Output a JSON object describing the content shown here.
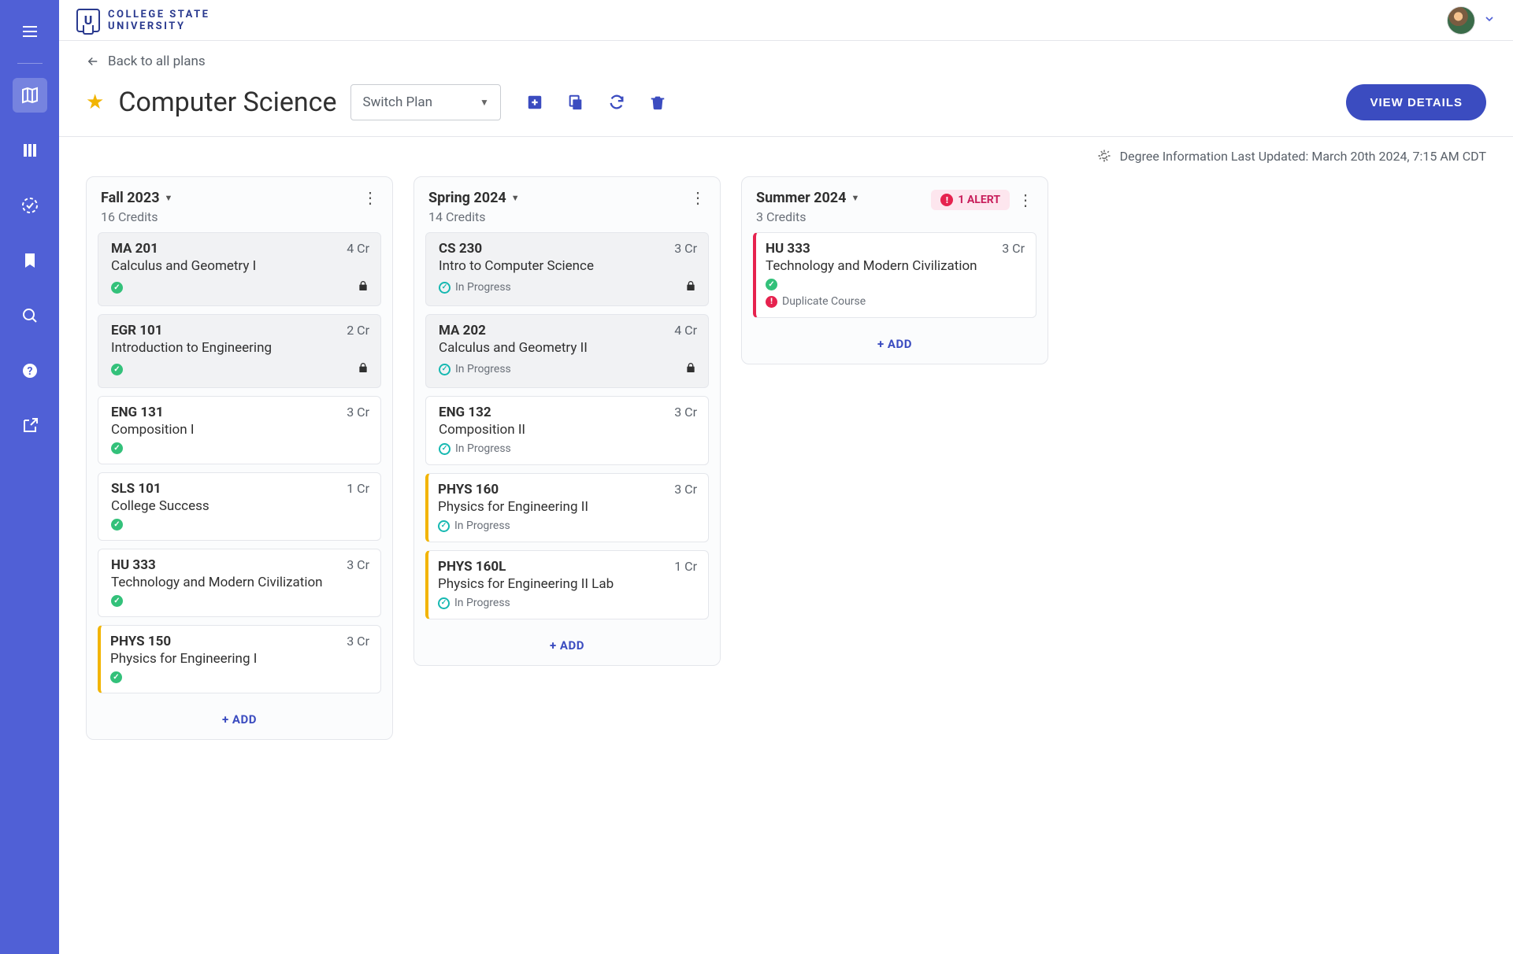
{
  "brand": {
    "line1": "COLLEGE STATE",
    "line2": "UNIVERSITY",
    "mark": "U"
  },
  "back_link": "Back to all plans",
  "page_title": "Computer Science",
  "switch_plan_label": "Switch Plan",
  "view_details_label": "VIEW DETAILS",
  "degree_info": {
    "prefix": "Degree Information Last Updated: ",
    "timestamp": "March 20th 2024, 7:15 AM CDT"
  },
  "add_label": "+ ADD",
  "colors": {
    "sidebar": "#5060d6",
    "primary": "#3b4cc0",
    "star": "#f2b400",
    "alert": "#e6224e",
    "alert_bg": "#fde6ee",
    "teal": "#15b8b1",
    "green": "#33c17a"
  },
  "terms": [
    {
      "title": "Fall 2023",
      "credits_label": "16 Credits",
      "alert": null,
      "courses": [
        {
          "code": "MA 201",
          "name": "Calculus and Geometry I",
          "credits": "4 Cr",
          "status": "complete",
          "status_text": "",
          "locked": true,
          "accent": null,
          "warning": null
        },
        {
          "code": "EGR 101",
          "name": "Introduction to Engineering",
          "credits": "2 Cr",
          "status": "complete",
          "status_text": "",
          "locked": true,
          "accent": null,
          "warning": null
        },
        {
          "code": "ENG 131",
          "name": "Composition I",
          "credits": "3 Cr",
          "status": "complete",
          "status_text": "",
          "locked": false,
          "accent": null,
          "warning": null
        },
        {
          "code": "SLS 101",
          "name": "College Success",
          "credits": "1 Cr",
          "status": "complete",
          "status_text": "",
          "locked": false,
          "accent": null,
          "warning": null
        },
        {
          "code": "HU 333",
          "name": "Technology and Modern Civilization",
          "credits": "3 Cr",
          "status": "complete",
          "status_text": "",
          "locked": false,
          "accent": null,
          "warning": null
        },
        {
          "code": "PHYS 150",
          "name": "Physics for Engineering I",
          "credits": "3 Cr",
          "status": "complete",
          "status_text": "",
          "locked": false,
          "accent": "yellow",
          "warning": null
        }
      ]
    },
    {
      "title": "Spring 2024",
      "credits_label": "14 Credits",
      "alert": null,
      "courses": [
        {
          "code": "CS 230",
          "name": "Intro to Computer Science",
          "credits": "3 Cr",
          "status": "in-progress",
          "status_text": "In Progress",
          "locked": true,
          "accent": null,
          "warning": null
        },
        {
          "code": "MA 202",
          "name": "Calculus and Geometry II",
          "credits": "4 Cr",
          "status": "in-progress",
          "status_text": "In Progress",
          "locked": true,
          "accent": null,
          "warning": null
        },
        {
          "code": "ENG 132",
          "name": "Composition II",
          "credits": "3 Cr",
          "status": "in-progress",
          "status_text": "In Progress",
          "locked": false,
          "accent": null,
          "warning": null
        },
        {
          "code": "PHYS 160",
          "name": "Physics for Engineering II",
          "credits": "3 Cr",
          "status": "in-progress",
          "status_text": "In Progress",
          "locked": false,
          "accent": "yellow",
          "warning": null
        },
        {
          "code": "PHYS 160L",
          "name": "Physics for Engineering II Lab",
          "credits": "1 Cr",
          "status": "in-progress",
          "status_text": "In Progress",
          "locked": false,
          "accent": "yellow",
          "warning": null
        }
      ]
    },
    {
      "title": "Summer 2024",
      "credits_label": "3 Credits",
      "alert": "1 ALERT",
      "courses": [
        {
          "code": "HU 333",
          "name": "Technology and Modern Civilization",
          "credits": "3 Cr",
          "status": "complete",
          "status_text": "",
          "locked": false,
          "accent": "red",
          "warning": "Duplicate Course"
        }
      ]
    }
  ]
}
